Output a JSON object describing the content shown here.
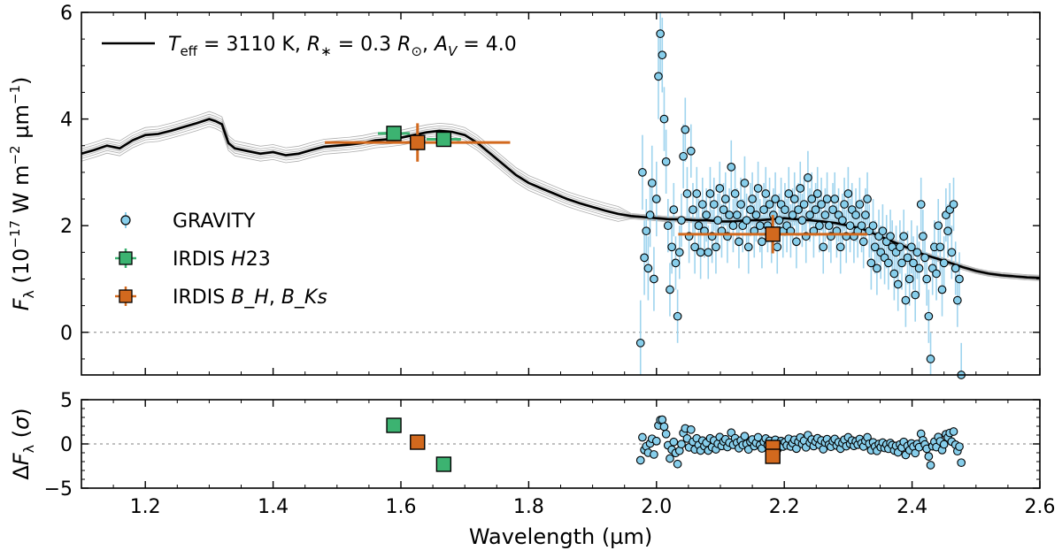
{
  "chart_data": {
    "type": "scatter",
    "title": "",
    "xlabel": "Wavelength (µm)",
    "x_ticks": [
      "1.2",
      "1.4",
      "1.6",
      "1.8",
      "2.0",
      "2.2",
      "2.4",
      "2.6"
    ],
    "xlim": [
      1.1,
      2.6
    ],
    "top_panel": {
      "ylabel": "F_λ (10^-17 W m^-2 µm^-1)",
      "ylim": [
        -0.8,
        6.0
      ],
      "y_ticks": [
        "0",
        "2",
        "4",
        "6"
      ],
      "zero_line": true,
      "model": {
        "label": "T_eff = 3110 K, R_* = 0.3 R_⊙, A_V = 4.0",
        "x": [
          1.1,
          1.12,
          1.14,
          1.16,
          1.18,
          1.2,
          1.22,
          1.24,
          1.26,
          1.28,
          1.3,
          1.31,
          1.32,
          1.33,
          1.34,
          1.36,
          1.38,
          1.4,
          1.42,
          1.44,
          1.46,
          1.48,
          1.5,
          1.52,
          1.54,
          1.56,
          1.58,
          1.6,
          1.62,
          1.64,
          1.66,
          1.68,
          1.7,
          1.72,
          1.74,
          1.76,
          1.78,
          1.8,
          1.82,
          1.84,
          1.86,
          1.88,
          1.9,
          1.92,
          1.94,
          1.96,
          1.98,
          2.0,
          2.02,
          2.04,
          2.06,
          2.08,
          2.1,
          2.12,
          2.14,
          2.16,
          2.18,
          2.2,
          2.22,
          2.24,
          2.26,
          2.28,
          2.3,
          2.32,
          2.34,
          2.36,
          2.38,
          2.4,
          2.42,
          2.44,
          2.46,
          2.48,
          2.5,
          2.52,
          2.54,
          2.56,
          2.58,
          2.6
        ],
        "y": [
          3.35,
          3.42,
          3.5,
          3.45,
          3.6,
          3.7,
          3.72,
          3.78,
          3.85,
          3.92,
          4.0,
          3.96,
          3.9,
          3.55,
          3.45,
          3.4,
          3.35,
          3.38,
          3.32,
          3.35,
          3.42,
          3.48,
          3.5,
          3.52,
          3.55,
          3.6,
          3.62,
          3.65,
          3.7,
          3.75,
          3.78,
          3.76,
          3.7,
          3.55,
          3.35,
          3.15,
          2.95,
          2.8,
          2.7,
          2.6,
          2.5,
          2.42,
          2.35,
          2.28,
          2.22,
          2.18,
          2.16,
          2.14,
          2.12,
          2.12,
          2.1,
          2.1,
          2.08,
          2.08,
          2.1,
          2.1,
          2.12,
          2.14,
          2.12,
          2.1,
          2.08,
          2.05,
          2.0,
          1.95,
          1.85,
          1.75,
          1.65,
          1.55,
          1.45,
          1.38,
          1.3,
          1.22,
          1.15,
          1.1,
          1.07,
          1.05,
          1.03,
          1.02
        ]
      },
      "gravity": {
        "label": "GRAVITY",
        "points": [
          [
            1.975,
            -0.2,
            0.8
          ],
          [
            1.978,
            3.0,
            0.7
          ],
          [
            1.981,
            1.4,
            0.7
          ],
          [
            1.984,
            1.9,
            0.6
          ],
          [
            1.987,
            1.2,
            0.6
          ],
          [
            1.99,
            2.2,
            0.6
          ],
          [
            1.993,
            2.8,
            0.7
          ],
          [
            1.996,
            1.0,
            0.6
          ],
          [
            2.0,
            2.5,
            0.7
          ],
          [
            2.003,
            4.8,
            0.8
          ],
          [
            2.006,
            5.6,
            0.8
          ],
          [
            2.009,
            5.2,
            0.7
          ],
          [
            2.012,
            4.0,
            0.6
          ],
          [
            2.015,
            3.2,
            0.6
          ],
          [
            2.018,
            2.0,
            0.5
          ],
          [
            2.021,
            0.8,
            0.5
          ],
          [
            2.024,
            1.6,
            0.5
          ],
          [
            2.027,
            2.3,
            0.5
          ],
          [
            2.03,
            1.3,
            0.5
          ],
          [
            2.033,
            0.3,
            0.5
          ],
          [
            2.036,
            1.5,
            0.5
          ],
          [
            2.039,
            2.1,
            0.5
          ],
          [
            2.042,
            3.3,
            0.6
          ],
          [
            2.045,
            3.8,
            0.6
          ],
          [
            2.048,
            2.6,
            0.5
          ],
          [
            2.051,
            1.8,
            0.5
          ],
          [
            2.054,
            3.4,
            0.5
          ],
          [
            2.057,
            2.3,
            0.5
          ],
          [
            2.06,
            1.6,
            0.5
          ],
          [
            2.063,
            2.6,
            0.5
          ],
          [
            2.066,
            2.0,
            0.5
          ],
          [
            2.069,
            1.5,
            0.5
          ],
          [
            2.072,
            2.4,
            0.5
          ],
          [
            2.075,
            1.9,
            0.5
          ],
          [
            2.078,
            2.2,
            0.5
          ],
          [
            2.081,
            1.5,
            0.5
          ],
          [
            2.084,
            2.6,
            0.5
          ],
          [
            2.087,
            1.8,
            0.5
          ],
          [
            2.09,
            2.4,
            0.5
          ],
          [
            2.093,
            1.6,
            0.5
          ],
          [
            2.096,
            2.1,
            0.5
          ],
          [
            2.099,
            2.7,
            0.5
          ],
          [
            2.102,
            1.9,
            0.5
          ],
          [
            2.105,
            2.3,
            0.5
          ],
          [
            2.108,
            2.5,
            0.5
          ],
          [
            2.111,
            1.8,
            0.5
          ],
          [
            2.114,
            2.2,
            0.5
          ],
          [
            2.117,
            3.1,
            0.5
          ],
          [
            2.12,
            2.0,
            0.5
          ],
          [
            2.123,
            2.6,
            0.5
          ],
          [
            2.126,
            2.2,
            0.5
          ],
          [
            2.129,
            1.7,
            0.5
          ],
          [
            2.132,
            2.4,
            0.5
          ],
          [
            2.135,
            2.0,
            0.5
          ],
          [
            2.138,
            2.8,
            0.5
          ],
          [
            2.141,
            2.1,
            0.5
          ],
          [
            2.144,
            1.6,
            0.5
          ],
          [
            2.147,
            2.3,
            0.5
          ],
          [
            2.15,
            2.5,
            0.5
          ],
          [
            2.153,
            1.9,
            0.5
          ],
          [
            2.156,
            2.2,
            0.5
          ],
          [
            2.159,
            2.7,
            0.5
          ],
          [
            2.162,
            2.0,
            0.5
          ],
          [
            2.165,
            1.7,
            0.5
          ],
          [
            2.168,
            2.3,
            0.5
          ],
          [
            2.171,
            2.6,
            0.5
          ],
          [
            2.174,
            2.0,
            0.5
          ],
          [
            2.177,
            2.4,
            0.5
          ],
          [
            2.18,
            1.8,
            0.5
          ],
          [
            2.183,
            2.2,
            0.5
          ],
          [
            2.186,
            2.5,
            0.5
          ],
          [
            2.189,
            1.6,
            0.5
          ],
          [
            2.192,
            2.1,
            0.5
          ],
          [
            2.195,
            2.4,
            0.5
          ],
          [
            2.198,
            1.9,
            0.5
          ],
          [
            2.201,
            2.3,
            0.5
          ],
          [
            2.204,
            2.0,
            0.5
          ],
          [
            2.207,
            2.6,
            0.5
          ],
          [
            2.21,
            1.9,
            0.5
          ],
          [
            2.213,
            2.2,
            0.5
          ],
          [
            2.216,
            2.5,
            0.5
          ],
          [
            2.219,
            1.7,
            0.5
          ],
          [
            2.222,
            2.3,
            0.5
          ],
          [
            2.225,
            2.7,
            0.5
          ],
          [
            2.228,
            2.1,
            0.5
          ],
          [
            2.231,
            2.4,
            0.5
          ],
          [
            2.234,
            1.8,
            0.5
          ],
          [
            2.237,
            2.9,
            0.5
          ],
          [
            2.24,
            2.2,
            0.5
          ],
          [
            2.243,
            2.5,
            0.5
          ],
          [
            2.246,
            1.9,
            0.5
          ],
          [
            2.249,
            2.3,
            0.5
          ],
          [
            2.252,
            2.6,
            0.5
          ],
          [
            2.255,
            2.0,
            0.5
          ],
          [
            2.258,
            2.4,
            0.5
          ],
          [
            2.261,
            1.6,
            0.5
          ],
          [
            2.264,
            2.2,
            0.5
          ],
          [
            2.267,
            2.5,
            0.5
          ],
          [
            2.27,
            2.0,
            0.5
          ],
          [
            2.273,
            1.8,
            0.5
          ],
          [
            2.276,
            2.3,
            0.5
          ],
          [
            2.279,
            2.5,
            0.5
          ],
          [
            2.282,
            1.9,
            0.5
          ],
          [
            2.285,
            2.2,
            0.5
          ],
          [
            2.288,
            1.6,
            0.5
          ],
          [
            2.291,
            2.1,
            0.5
          ],
          [
            2.294,
            2.4,
            0.5
          ],
          [
            2.297,
            1.8,
            0.5
          ],
          [
            2.3,
            2.6,
            0.5
          ],
          [
            2.303,
            2.0,
            0.5
          ],
          [
            2.306,
            2.3,
            0.5
          ],
          [
            2.309,
            1.8,
            0.5
          ],
          [
            2.312,
            2.2,
            0.5
          ],
          [
            2.315,
            1.9,
            0.5
          ],
          [
            2.318,
            2.4,
            0.5
          ],
          [
            2.321,
            2.0,
            0.5
          ],
          [
            2.324,
            1.7,
            0.5
          ],
          [
            2.327,
            2.2,
            0.5
          ],
          [
            2.33,
            2.5,
            0.5
          ],
          [
            2.333,
            1.9,
            0.5
          ],
          [
            2.336,
            1.3,
            0.5
          ],
          [
            2.339,
            2.0,
            0.5
          ],
          [
            2.342,
            1.6,
            0.5
          ],
          [
            2.345,
            1.2,
            0.5
          ],
          [
            2.348,
            1.8,
            0.5
          ],
          [
            2.351,
            1.5,
            0.5
          ],
          [
            2.354,
            1.9,
            0.5
          ],
          [
            2.357,
            1.4,
            0.5
          ],
          [
            2.36,
            1.7,
            0.5
          ],
          [
            2.363,
            1.3,
            0.5
          ],
          [
            2.366,
            1.8,
            0.5
          ],
          [
            2.369,
            1.6,
            0.5
          ],
          [
            2.372,
            1.1,
            0.5
          ],
          [
            2.375,
            1.5,
            0.5
          ],
          [
            2.378,
            0.9,
            0.5
          ],
          [
            2.381,
            1.6,
            0.5
          ],
          [
            2.384,
            1.3,
            0.5
          ],
          [
            2.387,
            1.8,
            0.5
          ],
          [
            2.39,
            0.6,
            0.5
          ],
          [
            2.393,
            1.4,
            0.5
          ],
          [
            2.396,
            1.0,
            0.5
          ],
          [
            2.399,
            1.6,
            0.5
          ],
          [
            2.402,
            1.3,
            0.5
          ],
          [
            2.405,
            0.7,
            0.5
          ],
          [
            2.408,
            1.5,
            0.5
          ],
          [
            2.411,
            1.2,
            0.5
          ],
          [
            2.414,
            2.4,
            0.5
          ],
          [
            2.417,
            1.8,
            0.5
          ],
          [
            2.42,
            1.4,
            0.5
          ],
          [
            2.423,
            1.0,
            0.5
          ],
          [
            2.426,
            0.3,
            0.5
          ],
          [
            2.429,
            -0.5,
            0.5
          ],
          [
            2.432,
            1.2,
            0.5
          ],
          [
            2.435,
            1.6,
            0.5
          ],
          [
            2.438,
            1.1,
            0.5
          ],
          [
            2.441,
            2.0,
            0.5
          ],
          [
            2.444,
            1.6,
            0.5
          ],
          [
            2.447,
            0.8,
            0.5
          ],
          [
            2.45,
            1.3,
            0.5
          ],
          [
            2.453,
            2.2,
            0.5
          ],
          [
            2.456,
            1.9,
            0.5
          ],
          [
            2.459,
            2.3,
            0.5
          ],
          [
            2.462,
            1.5,
            0.5
          ],
          [
            2.465,
            2.4,
            0.5
          ],
          [
            2.468,
            1.2,
            0.5
          ],
          [
            2.471,
            0.6,
            0.5
          ],
          [
            2.474,
            1.0,
            0.5
          ],
          [
            2.477,
            -0.8,
            0.6
          ]
        ]
      },
      "irdis_h23": {
        "label": "IRDIS H23",
        "points": [
          {
            "x": 1.589,
            "y": 3.73,
            "xerr": 0.025,
            "yerr": 0.14
          },
          {
            "x": 1.667,
            "y": 3.62,
            "xerr": 0.027,
            "yerr": 0.14
          }
        ]
      },
      "irdis_bb": {
        "label": "IRDIS B_H, B_Ks",
        "points": [
          {
            "x": 1.626,
            "y": 3.56,
            "xerr": 0.145,
            "yerr": 0.36
          },
          {
            "x": 2.182,
            "y": 1.84,
            "xerr": 0.148,
            "yerr": 0.36
          }
        ]
      }
    },
    "bottom_panel": {
      "ylabel": "ΔF_λ (σ)",
      "ylim": [
        -5,
        5
      ],
      "y_ticks": [
        "−5",
        "0",
        "5"
      ],
      "zero_line": true,
      "irdis_h23": [
        [
          1.589,
          2.1
        ],
        [
          1.667,
          -2.3
        ]
      ],
      "irdis_bb": [
        [
          1.626,
          0.2
        ],
        [
          2.182,
          -0.4
        ],
        [
          2.182,
          -1.4
        ]
      ]
    },
    "colors": {
      "gravity_fill": "#87CEEB",
      "gravity_err": "#9fd4ee",
      "irdis_h23": "#3cb371",
      "irdis_bb": "#d2691e",
      "model": "#000000",
      "model_samples": "#9a9a9a",
      "zero_line": "#9a9a9a"
    }
  }
}
